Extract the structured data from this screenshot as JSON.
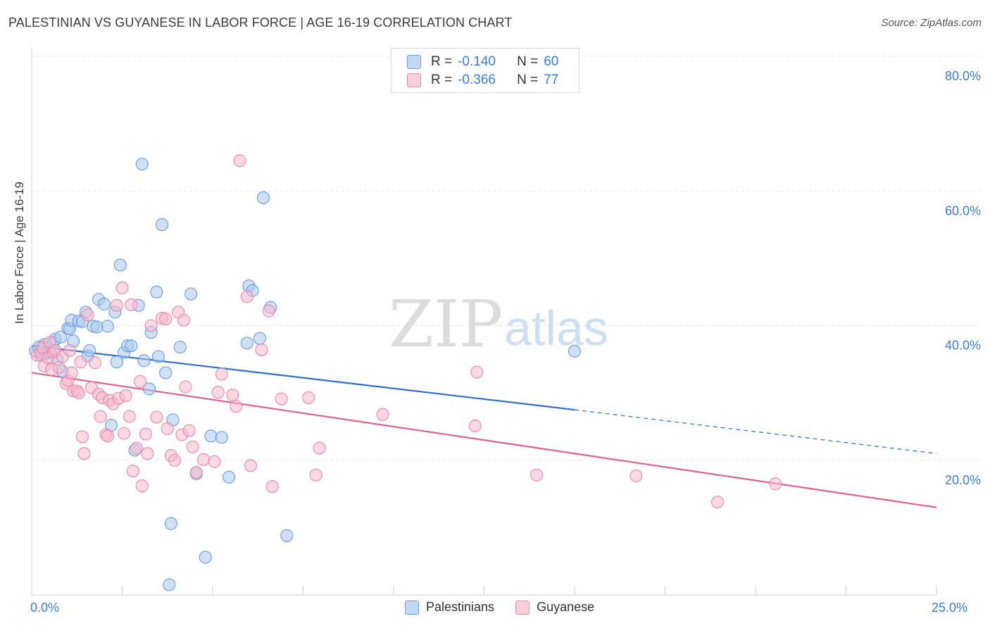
{
  "title": "PALESTINIAN VS GUYANESE IN LABOR FORCE | AGE 16-19 CORRELATION CHART",
  "source": "Source: ZipAtlas.com",
  "watermark": {
    "part1": "ZIP",
    "part2": "atlas"
  },
  "legend_top": {
    "rows": [
      {
        "r_label": "R =",
        "r_value": "-0.140",
        "n_label": "N =",
        "n_value": "60"
      },
      {
        "r_label": "R =",
        "r_value": "-0.366",
        "n_label": "N =",
        "n_value": "77"
      }
    ]
  },
  "legend_bottom": {
    "items": [
      {
        "label": "Palestinians"
      },
      {
        "label": "Guyanese"
      }
    ]
  },
  "x_axis": {
    "min_label": "0.0%",
    "max_label": "25.0%"
  },
  "colors": {
    "blue_fill": "#aac8f0",
    "blue_stroke": "#6a9ee0",
    "blue_line": "#2a6fd1",
    "pink_fill": "#f7b8cc",
    "pink_stroke": "#e88aa8",
    "pink_line": "#e0628c",
    "accent_text": "#3b7dd8",
    "grid": "#e3e3e3"
  },
  "chart_data": {
    "type": "scatter",
    "title": "PALESTINIAN VS GUYANESE IN LABOR FORCE | AGE 16-19 CORRELATION CHART",
    "xlabel": "",
    "ylabel": "In Labor Force | Age 16-19",
    "xlim": [
      0,
      25
    ],
    "ylim": [
      0,
      80
    ],
    "y_ticks": [
      {
        "value": 20,
        "label": "20.0%"
      },
      {
        "value": 40,
        "label": "40.0%"
      },
      {
        "value": 60,
        "label": "60.0%"
      },
      {
        "value": 80,
        "label": "80.0%"
      }
    ],
    "x_tick_values": [
      0,
      2.5,
      5,
      7.5,
      10,
      12.5,
      15,
      17.5,
      20,
      22.5,
      25
    ],
    "series": [
      {
        "name": "Palestinians",
        "r": -0.14,
        "n": 60,
        "trend": {
          "x0": 0,
          "y0": 37.0,
          "x1": 15,
          "y1": 27.5,
          "dash_x1": 25,
          "dash_y1": 21.0
        },
        "points": [
          [
            0.1,
            36.2
          ],
          [
            0.2,
            36.8
          ],
          [
            0.25,
            35.6
          ],
          [
            0.3,
            36.5
          ],
          [
            0.35,
            37.2
          ],
          [
            0.4,
            35.9
          ],
          [
            0.5,
            36.1
          ],
          [
            0.6,
            37.5
          ],
          [
            0.65,
            38.0
          ],
          [
            0.7,
            35.0
          ],
          [
            0.8,
            38.3
          ],
          [
            0.85,
            33.2
          ],
          [
            1.0,
            39.6
          ],
          [
            1.05,
            39.5
          ],
          [
            1.1,
            40.8
          ],
          [
            1.15,
            37.7
          ],
          [
            1.3,
            40.7
          ],
          [
            1.4,
            40.6
          ],
          [
            1.5,
            42.0
          ],
          [
            1.55,
            35.5
          ],
          [
            1.6,
            36.3
          ],
          [
            1.7,
            39.9
          ],
          [
            1.8,
            39.8
          ],
          [
            1.85,
            43.9
          ],
          [
            2.0,
            43.2
          ],
          [
            2.1,
            39.9
          ],
          [
            2.2,
            25.2
          ],
          [
            2.3,
            42.0
          ],
          [
            2.35,
            34.6
          ],
          [
            2.45,
            49.0
          ],
          [
            2.55,
            36.0
          ],
          [
            2.65,
            37.0
          ],
          [
            2.75,
            37.0
          ],
          [
            2.85,
            21.5
          ],
          [
            2.95,
            43.0
          ],
          [
            3.05,
            64.0
          ],
          [
            3.1,
            34.8
          ],
          [
            3.25,
            30.6
          ],
          [
            3.3,
            39.0
          ],
          [
            3.45,
            45.0
          ],
          [
            3.5,
            35.4
          ],
          [
            3.6,
            55.0
          ],
          [
            3.7,
            33.0
          ],
          [
            3.8,
            1.5
          ],
          [
            3.85,
            10.6
          ],
          [
            3.9,
            26.0
          ],
          [
            4.1,
            36.8
          ],
          [
            4.4,
            44.7
          ],
          [
            4.55,
            18.0
          ],
          [
            4.8,
            5.6
          ],
          [
            4.95,
            23.6
          ],
          [
            5.25,
            23.4
          ],
          [
            5.45,
            17.5
          ],
          [
            5.95,
            37.4
          ],
          [
            6.0,
            45.9
          ],
          [
            6.1,
            45.2
          ],
          [
            6.3,
            38.1
          ],
          [
            6.4,
            59.0
          ],
          [
            6.6,
            42.7
          ],
          [
            7.05,
            8.8
          ],
          [
            15.0,
            36.2
          ]
        ]
      },
      {
        "name": "Guyanese",
        "r": -0.366,
        "n": 77,
        "trend": {
          "x0": 0,
          "y0": 33.0,
          "x1": 25,
          "y1": 13.0
        },
        "points": [
          [
            0.15,
            35.6
          ],
          [
            0.25,
            36.0
          ],
          [
            0.3,
            36.8
          ],
          [
            0.35,
            34.0
          ],
          [
            0.45,
            35.2
          ],
          [
            0.5,
            37.5
          ],
          [
            0.55,
            33.5
          ],
          [
            0.6,
            36.0
          ],
          [
            0.65,
            36.3
          ],
          [
            0.75,
            33.8
          ],
          [
            0.85,
            35.4
          ],
          [
            0.95,
            31.4
          ],
          [
            1.0,
            31.8
          ],
          [
            1.05,
            36.3
          ],
          [
            1.1,
            33.0
          ],
          [
            1.15,
            30.3
          ],
          [
            1.25,
            30.3
          ],
          [
            1.3,
            30.0
          ],
          [
            1.35,
            34.6
          ],
          [
            1.4,
            23.5
          ],
          [
            1.45,
            21.0
          ],
          [
            1.55,
            41.6
          ],
          [
            1.65,
            30.8
          ],
          [
            1.75,
            34.5
          ],
          [
            1.85,
            29.8
          ],
          [
            1.9,
            26.5
          ],
          [
            1.95,
            29.3
          ],
          [
            2.05,
            23.8
          ],
          [
            2.1,
            23.6
          ],
          [
            2.15,
            28.9
          ],
          [
            2.25,
            28.4
          ],
          [
            2.35,
            43.0
          ],
          [
            2.4,
            29.2
          ],
          [
            2.5,
            45.6
          ],
          [
            2.55,
            24.0
          ],
          [
            2.6,
            29.6
          ],
          [
            2.7,
            26.5
          ],
          [
            2.75,
            43.1
          ],
          [
            2.8,
            18.4
          ],
          [
            2.9,
            21.8
          ],
          [
            3.0,
            31.7
          ],
          [
            3.05,
            16.2
          ],
          [
            3.15,
            23.9
          ],
          [
            3.2,
            21.0
          ],
          [
            3.3,
            40.0
          ],
          [
            3.45,
            26.4
          ],
          [
            3.6,
            41.1
          ],
          [
            3.7,
            41.0
          ],
          [
            3.75,
            24.7
          ],
          [
            3.85,
            20.7
          ],
          [
            3.95,
            20.0
          ],
          [
            4.05,
            42.0
          ],
          [
            4.15,
            23.8
          ],
          [
            4.2,
            40.8
          ],
          [
            4.25,
            30.9
          ],
          [
            4.35,
            24.4
          ],
          [
            4.45,
            22.0
          ],
          [
            4.55,
            18.2
          ],
          [
            4.75,
            20.1
          ],
          [
            5.05,
            19.8
          ],
          [
            5.15,
            30.1
          ],
          [
            5.25,
            32.8
          ],
          [
            5.55,
            29.7
          ],
          [
            5.65,
            28.0
          ],
          [
            5.75,
            64.5
          ],
          [
            5.95,
            44.3
          ],
          [
            6.05,
            19.2
          ],
          [
            6.35,
            36.4
          ],
          [
            6.55,
            42.2
          ],
          [
            6.65,
            16.1
          ],
          [
            6.9,
            29.1
          ],
          [
            7.65,
            29.3
          ],
          [
            7.85,
            17.8
          ],
          [
            7.95,
            21.8
          ],
          [
            9.7,
            26.8
          ],
          [
            12.25,
            25.1
          ],
          [
            12.3,
            33.1
          ],
          [
            13.95,
            17.8
          ],
          [
            16.7,
            17.7
          ],
          [
            18.95,
            13.8
          ],
          [
            20.55,
            16.5
          ]
        ]
      }
    ]
  }
}
